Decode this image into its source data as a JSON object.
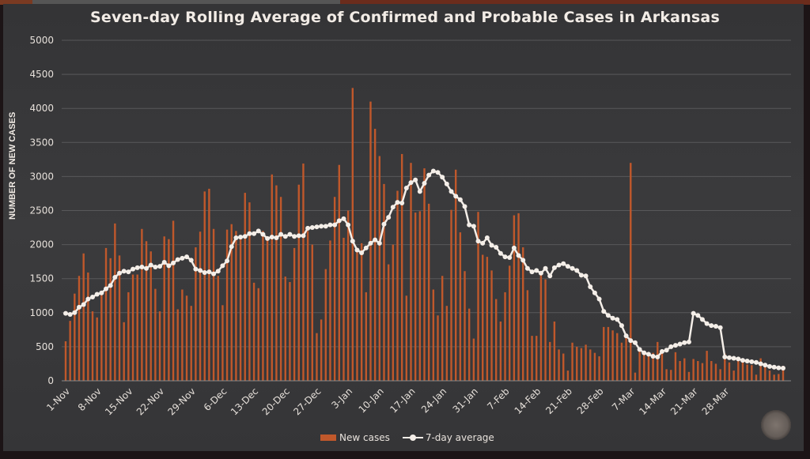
{
  "chart_data": {
    "type": "bar",
    "title": "Seven-day Rolling Average of Confirmed and Probable Cases in Arkansas",
    "xlabel": "",
    "ylabel": "NUMBER OF NEW CASES",
    "ylim": [
      0,
      5000
    ],
    "yticks": [
      0,
      500,
      1000,
      1500,
      2000,
      2500,
      3000,
      3500,
      4000,
      4500,
      5000
    ],
    "grid": true,
    "legend_position": "bottom",
    "x_start": "1-Nov",
    "x_end": "28-Mar",
    "xtick_labels": [
      "1-Nov",
      "8-Nov",
      "15-Nov",
      "22-Nov",
      "29-Nov",
      "6-Dec",
      "13-Dec",
      "20-Dec",
      "27-Dec",
      "3-Jan",
      "10-Jan",
      "17-Jan",
      "24-Jan",
      "31-Jan",
      "7-Feb",
      "14-Feb",
      "21-Feb",
      "28-Feb",
      "7-Mar",
      "14-Mar",
      "21-Mar",
      "28-Mar"
    ],
    "series": [
      {
        "name": "New cases",
        "type": "bar",
        "color": "#c0582b",
        "values": [
          580,
          880,
          1280,
          1540,
          1870,
          1590,
          1020,
          930,
          1320,
          1950,
          1800,
          2310,
          1840,
          860,
          1300,
          1560,
          1560,
          2230,
          2050,
          1900,
          1350,
          1020,
          2120,
          2080,
          2350,
          1050,
          1340,
          1250,
          1100,
          1960,
          2190,
          2780,
          2820,
          2230,
          1540,
          1110,
          2220,
          2300,
          2200,
          2130,
          2760,
          2620,
          1440,
          1360,
          2200,
          2100,
          3030,
          2870,
          2700,
          1530,
          1450,
          1950,
          2880,
          3190,
          2200,
          2000,
          700,
          900,
          1640,
          2060,
          2700,
          3170,
          2100,
          2500,
          4300,
          1940,
          2020,
          1300,
          4100,
          3700,
          3300,
          2890,
          1710,
          2000,
          2790,
          3330,
          1250,
          3200,
          2470,
          2490,
          3120,
          2600,
          1340,
          960,
          1540,
          1100,
          2510,
          3100,
          2180,
          1610,
          1060,
          620,
          2480,
          1850,
          1820,
          1620,
          1200,
          870,
          1300,
          1690,
          2430,
          2460,
          1960,
          1330,
          660,
          660,
          1560,
          1490,
          570,
          870,
          460,
          400,
          150,
          560,
          500,
          480,
          530,
          460,
          410,
          360,
          790,
          790,
          740,
          700,
          560,
          680,
          3200,
          120,
          430,
          420,
          400,
          410,
          570,
          440,
          170,
          160,
          420,
          290,
          330,
          130,
          320,
          290,
          260,
          440,
          290,
          250,
          170,
          400,
          270,
          150,
          350,
          270,
          240,
          230,
          90,
          330,
          200,
          150,
          90,
          100,
          220
        ]
      },
      {
        "name": "7-day average",
        "type": "line",
        "color": "#f4eee8",
        "values": [
          990,
          975,
          1000,
          1080,
          1120,
          1200,
          1230,
          1270,
          1290,
          1350,
          1400,
          1520,
          1580,
          1610,
          1600,
          1640,
          1660,
          1670,
          1650,
          1700,
          1670,
          1680,
          1740,
          1690,
          1730,
          1780,
          1800,
          1820,
          1770,
          1640,
          1620,
          1590,
          1600,
          1570,
          1610,
          1690,
          1760,
          1970,
          2100,
          2110,
          2120,
          2160,
          2160,
          2200,
          2150,
          2090,
          2110,
          2100,
          2150,
          2120,
          2150,
          2120,
          2130,
          2130,
          2240,
          2250,
          2260,
          2270,
          2270,
          2290,
          2290,
          2350,
          2380,
          2290,
          2050,
          1920,
          1880,
          1950,
          2020,
          2070,
          2020,
          2300,
          2400,
          2550,
          2620,
          2610,
          2830,
          2910,
          2950,
          2780,
          2900,
          3020,
          3080,
          3060,
          2990,
          2890,
          2780,
          2710,
          2660,
          2560,
          2290,
          2270,
          2050,
          2020,
          2100,
          1990,
          1960,
          1870,
          1820,
          1810,
          1950,
          1840,
          1770,
          1650,
          1600,
          1620,
          1580,
          1650,
          1540,
          1660,
          1700,
          1720,
          1680,
          1650,
          1620,
          1550,
          1540,
          1380,
          1290,
          1200,
          1020,
          960,
          920,
          900,
          810,
          660,
          590,
          560,
          460,
          410,
          390,
          360,
          350,
          430,
          450,
          500,
          520,
          540,
          560,
          570,
          990,
          960,
          900,
          840,
          810,
          800,
          780,
          350,
          340,
          330,
          320,
          300,
          290,
          280,
          270,
          250,
          230,
          210,
          200,
          190,
          185
        ]
      }
    ]
  },
  "legend": {
    "items": [
      "New cases",
      "7-day average"
    ]
  }
}
